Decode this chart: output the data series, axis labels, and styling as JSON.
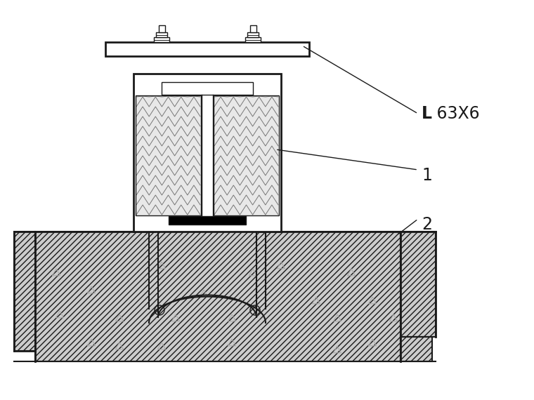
{
  "bg_color": "#ffffff",
  "line_color": "#1a1a1a",
  "label_L_bold": "L",
  "label_L_rest": " 63X6",
  "label_1": "1",
  "label_2": "2",
  "figsize": [
    7.6,
    5.7
  ],
  "dpi": 100
}
